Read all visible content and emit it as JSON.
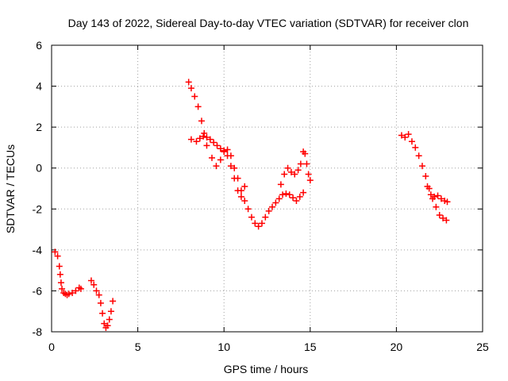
{
  "chart_data": {
    "type": "scatter",
    "title": "Day 143 of 2022, Sidereal Day-to-day VTEC variation (SDTVAR) for receiver clon",
    "xlabel": "GPS time / hours",
    "ylabel": "SDTVAR / TECUs",
    "xlim": [
      0,
      25
    ],
    "ylim": [
      -8,
      6
    ],
    "xticks": [
      0,
      5,
      10,
      15,
      20,
      25
    ],
    "yticks": [
      -8,
      -6,
      -4,
      -2,
      0,
      2,
      4,
      6
    ],
    "grid": true,
    "marker": "+",
    "series": [
      {
        "name": "SDTVAR",
        "color": "#ff0000",
        "x": [
          0.2,
          0.35,
          0.45,
          0.5,
          0.55,
          0.6,
          0.7,
          0.8,
          0.9,
          1.0,
          1.2,
          1.4,
          1.6,
          1.7,
          2.3,
          2.45,
          2.6,
          2.75,
          2.85,
          2.95,
          3.05,
          3.15,
          3.25,
          3.35,
          3.45,
          3.55,
          7.95,
          8.1,
          8.3,
          8.5,
          8.7,
          8.85,
          9.0,
          9.3,
          9.55,
          9.8,
          10.0,
          10.2,
          10.4,
          10.6,
          10.8,
          11.0,
          11.2,
          11.4,
          11.6,
          11.8,
          12.0,
          12.2,
          12.4,
          12.6,
          12.8,
          13.0,
          13.2,
          13.4,
          13.6,
          13.8,
          14.0,
          14.2,
          14.4,
          14.6,
          8.1,
          8.4,
          8.6,
          8.8,
          9.0,
          9.2,
          9.4,
          9.6,
          9.8,
          10.0,
          10.2,
          10.4,
          10.6,
          10.8,
          11.0,
          11.2,
          13.3,
          13.5,
          13.7,
          13.9,
          14.1,
          14.3,
          14.45,
          14.6,
          14.7,
          14.8,
          14.9,
          15.0,
          20.3,
          20.5,
          20.7,
          20.9,
          21.1,
          21.3,
          21.5,
          21.7,
          21.9,
          22.1,
          22.3,
          22.5,
          22.7,
          22.9,
          21.8,
          22.0,
          22.2,
          22.4,
          22.6,
          22.8,
          22.95
        ],
        "y": [
          -4.1,
          -4.3,
          -4.8,
          -5.2,
          -5.6,
          -5.9,
          -6.1,
          -6.15,
          -6.2,
          -6.15,
          -6.1,
          -6.0,
          -5.85,
          -5.9,
          -5.5,
          -5.7,
          -6.0,
          -6.2,
          -6.6,
          -7.1,
          -7.6,
          -7.8,
          -7.7,
          -7.4,
          -7.0,
          -6.5,
          4.2,
          3.9,
          3.5,
          3.0,
          2.3,
          1.7,
          1.1,
          0.5,
          0.1,
          0.4,
          0.8,
          0.9,
          0.6,
          0.0,
          -0.5,
          -1.1,
          -1.6,
          -2.0,
          -2.4,
          -2.7,
          -2.85,
          -2.7,
          -2.4,
          -2.1,
          -1.9,
          -1.7,
          -1.5,
          -1.3,
          -1.25,
          -1.3,
          -1.45,
          -1.6,
          -1.4,
          -1.2,
          1.4,
          1.3,
          1.45,
          1.55,
          1.5,
          1.4,
          1.25,
          1.1,
          0.95,
          0.85,
          0.6,
          0.1,
          -0.5,
          -1.1,
          -1.4,
          -0.9,
          -0.8,
          -0.3,
          0.0,
          -0.2,
          -0.3,
          -0.1,
          0.2,
          0.8,
          0.7,
          0.2,
          -0.3,
          -0.6,
          1.6,
          1.5,
          1.65,
          1.3,
          1.0,
          0.6,
          0.1,
          -0.4,
          -1.0,
          -1.5,
          -1.9,
          -2.3,
          -2.45,
          -2.55,
          -0.9,
          -1.3,
          -1.4,
          -1.35,
          -1.5,
          -1.6,
          -1.65
        ]
      }
    ]
  }
}
